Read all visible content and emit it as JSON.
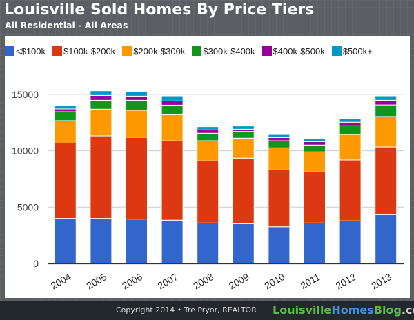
{
  "header": {
    "title": "Louisville Sold Homes By Price Tiers",
    "subtitle": "All Residential - All Areas"
  },
  "footer": {
    "copyright": "Copyright 2014 • Tre Pryor, REALTOR",
    "brand_part1": "Louisville",
    "brand_part2": "Homes",
    "brand_part3": "Blog",
    "brand_part4": ".com"
  },
  "chart_data": {
    "type": "bar",
    "stacked": true,
    "title": "Louisville Sold Homes By Price Tiers",
    "subtitle": "All Residential - All Areas",
    "xlabel": "",
    "ylabel": "",
    "ylim": [
      0,
      16000
    ],
    "yticks": [
      0,
      5000,
      10000,
      15000
    ],
    "ytick_labels": [
      "0",
      "5000",
      "10000",
      "15000"
    ],
    "grid": true,
    "legend_position": "top",
    "categories": [
      "2004",
      "2005",
      "2006",
      "2007",
      "2008",
      "2009",
      "2010",
      "2011",
      "2012",
      "2013"
    ],
    "series": [
      {
        "name": "<$100k",
        "color": "#3366cc",
        "values": [
          4000,
          4000,
          3940,
          3840,
          3590,
          3530,
          3260,
          3590,
          3780,
          4330
        ]
      },
      {
        "name": "$100k-$200k",
        "color": "#dc3912",
        "values": [
          6680,
          7320,
          7260,
          7040,
          5510,
          5820,
          5040,
          4530,
          5400,
          6010
        ]
      },
      {
        "name": "$200k-$300k",
        "color": "#ff9900",
        "values": [
          1990,
          2370,
          2390,
          2320,
          1790,
          1770,
          1960,
          1780,
          2260,
          2700
        ]
      },
      {
        "name": "$300k-$400k",
        "color": "#109618",
        "values": [
          790,
          790,
          890,
          850,
          660,
          590,
          630,
          610,
          780,
          1030
        ]
      },
      {
        "name": "$400k-$500k",
        "color": "#990099",
        "values": [
          250,
          430,
          370,
          370,
          300,
          200,
          290,
          300,
          310,
          410
        ]
      },
      {
        "name": "$500k+",
        "color": "#0099c6",
        "values": [
          300,
          410,
          410,
          450,
          290,
          290,
          260,
          290,
          320,
          390
        ]
      }
    ]
  }
}
